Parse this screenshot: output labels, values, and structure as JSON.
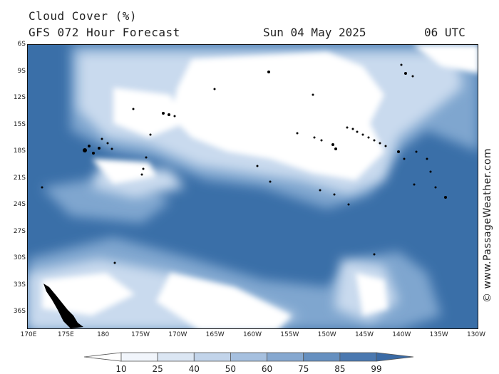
{
  "header": {
    "title": "Cloud Cover (%)",
    "subtitle": "GFS 072 Hour Forecast",
    "date": "Sun 04 May 2025",
    "time": "06 UTC"
  },
  "map": {
    "latitude_labels": [
      "6S",
      "9S",
      "12S",
      "15S",
      "18S",
      "21S",
      "24S",
      "27S",
      "30S",
      "33S",
      "36S"
    ],
    "longitude_labels": [
      "170E",
      "175E",
      "180",
      "175W",
      "170W",
      "165W",
      "160W",
      "155W",
      "150W",
      "145W",
      "140W",
      "135W",
      "130W"
    ],
    "colors": {
      "ocean_cloud_dark": "#3a6fa8",
      "cloud_mid": "#7fa6cf",
      "cloud_light": "#c9daee",
      "cloud_clear": "#ffffff",
      "land": "#000000"
    }
  },
  "legend": {
    "labels": [
      "10",
      "25",
      "40",
      "50",
      "60",
      "75",
      "85",
      "99"
    ],
    "colors": [
      "#ffffff",
      "#f1f5fb",
      "#dbe6f3",
      "#c2d4ea",
      "#a6c0df",
      "#86a8d0",
      "#6690c0",
      "#4a78b0",
      "#3a6aa5"
    ]
  },
  "copyright": "© www.PassageWeather.com"
}
